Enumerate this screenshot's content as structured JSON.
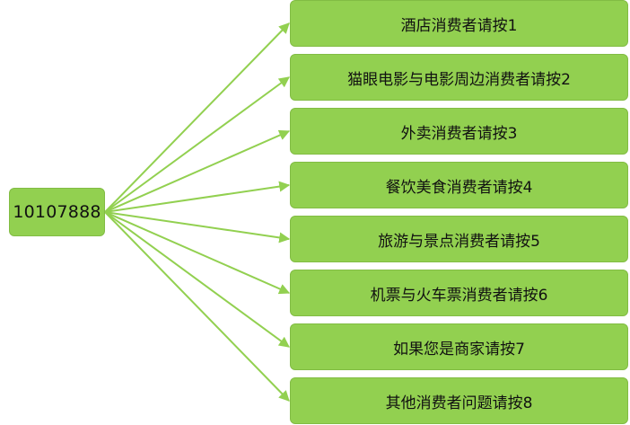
{
  "colors": {
    "box_fill": "#92d050",
    "box_border": "#82bc44",
    "connector": "#92d050"
  },
  "root": {
    "label": "10107888"
  },
  "options": [
    {
      "label": "酒店消费者请按1"
    },
    {
      "label": "猫眼电影与电影周边消费者请按2"
    },
    {
      "label": "外卖消费者请按3"
    },
    {
      "label": "餐饮美食消费者请按4"
    },
    {
      "label": "旅游与景点消费者请按5"
    },
    {
      "label": "机票与火车票消费者请按6"
    },
    {
      "label": "如果您是商家请按7"
    },
    {
      "label": "其他消费者问题请按8"
    }
  ]
}
